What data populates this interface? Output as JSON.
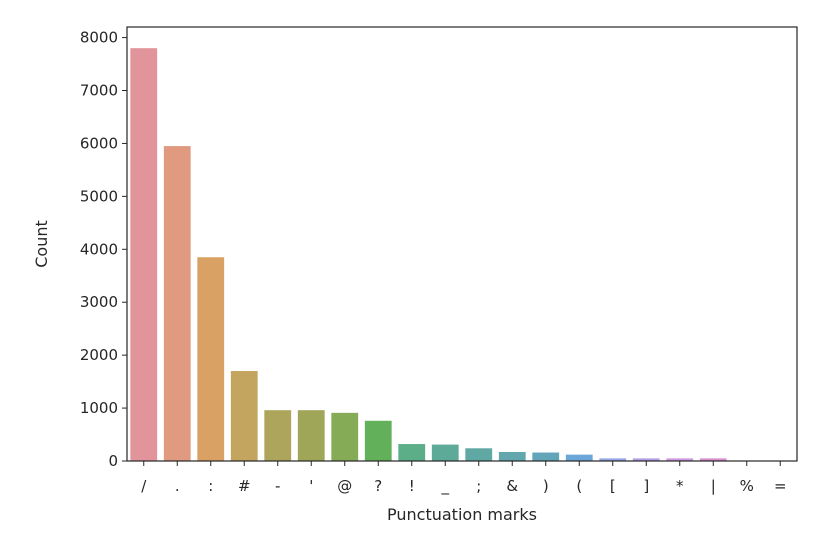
{
  "chart_data": {
    "type": "bar",
    "title": "",
    "xlabel": "Punctuation marks",
    "ylabel": "Count",
    "ylim": [
      0,
      8200
    ],
    "yticks": [
      0,
      1000,
      2000,
      3000,
      4000,
      5000,
      6000,
      7000,
      8000
    ],
    "grid": false,
    "legend": "none",
    "categories": [
      "/",
      ".",
      ":",
      "#",
      "-",
      "'",
      "@",
      "?",
      "!",
      "_",
      ";",
      "&",
      ")",
      "(",
      "[",
      "]",
      "*",
      "|",
      "%",
      "="
    ],
    "values": [
      7800,
      5950,
      3850,
      1700,
      960,
      960,
      910,
      760,
      320,
      310,
      240,
      170,
      160,
      120,
      50,
      50,
      50,
      50,
      8,
      5
    ],
    "colors": [
      "#e1959b",
      "#df9a80",
      "#d9a264",
      "#c3a55f",
      "#ada55b",
      "#9fa658",
      "#86ab56",
      "#62b15a",
      "#5cae88",
      "#5daa98",
      "#5fa8a3",
      "#61a7ad",
      "#62a5b8",
      "#6aa6d8",
      "#95a7e6",
      "#b39fe6",
      "#cf98e2",
      "#d88ecf",
      "#de8fbd",
      "#e094aa"
    ]
  }
}
